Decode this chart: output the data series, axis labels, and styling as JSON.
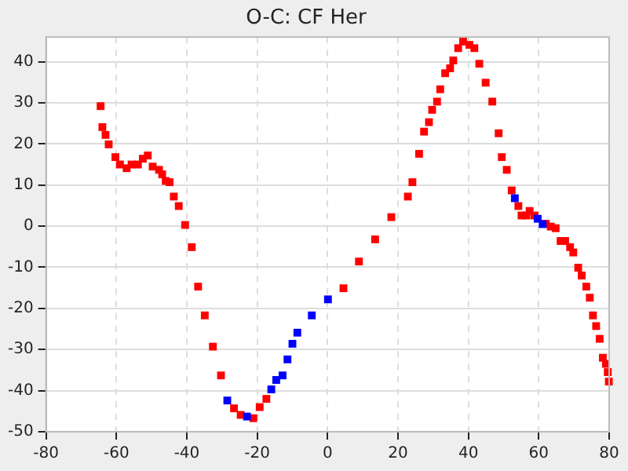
{
  "chart_data": {
    "type": "scatter",
    "title": "O-C: CF Her",
    "marker": "square",
    "grid": true,
    "legend": false,
    "xlim": [
      -80,
      80
    ],
    "xticks": [
      -80,
      -60,
      -40,
      -20,
      0,
      20,
      40,
      60,
      80
    ],
    "ylim": [
      -50,
      46
    ],
    "yticks": [
      -50,
      -40,
      -30,
      -20,
      -10,
      0,
      10,
      20,
      30,
      40
    ],
    "series": [
      {
        "color": "#ff0000",
        "x": [
          -64.5,
          -64.0,
          -63.1,
          -62.2,
          -60.3,
          -59.0,
          -57.1,
          -55.7,
          -53.9,
          -52.5,
          -51.1,
          -49.7,
          -47.9,
          -47.0,
          -46.0,
          -44.9,
          -43.7,
          -42.3,
          -40.5,
          -38.6,
          -36.8,
          -34.9,
          -32.6,
          -30.3,
          -26.6,
          -24.7,
          -21.1,
          -19.3,
          -17.4,
          4.5,
          8.9,
          13.5,
          18.1,
          22.8,
          24.1,
          26.0,
          27.4,
          28.8,
          29.7,
          31.1,
          32.0,
          33.4,
          34.8,
          35.7,
          37.1,
          38.5,
          40.3,
          41.7,
          43.1,
          44.9,
          46.8,
          48.6,
          49.5,
          50.9,
          52.3,
          54.2,
          55.1,
          56.5,
          57.4,
          58.8,
          62.0,
          63.4,
          64.8,
          66.2,
          67.5,
          68.9,
          69.8,
          71.2,
          72.2,
          73.5,
          74.5,
          75.4,
          76.3,
          77.3,
          78.2,
          79.1,
          79.6,
          79.9
        ],
        "values": [
          29.2,
          24.1,
          22.2,
          19.9,
          16.8,
          15.0,
          14.1,
          15.0,
          15.0,
          16.4,
          17.2,
          14.5,
          13.7,
          12.6,
          11.0,
          10.7,
          7.2,
          4.9,
          0.3,
          -5.1,
          -14.7,
          -21.7,
          -29.3,
          -36.3,
          -44.3,
          -45.9,
          -46.7,
          -44.0,
          -42.0,
          -15.1,
          -8.6,
          -3.2,
          2.2,
          7.2,
          10.7,
          17.6,
          23.0,
          25.3,
          28.3,
          30.3,
          33.3,
          37.2,
          38.4,
          40.3,
          43.3,
          44.9,
          44.1,
          43.3,
          39.5,
          34.9,
          30.3,
          22.6,
          16.8,
          13.7,
          8.7,
          4.9,
          2.6,
          2.6,
          3.7,
          2.6,
          0.6,
          -0.1,
          -0.5,
          -3.6,
          -3.6,
          -5.1,
          -6.4,
          -10.1,
          -12.0,
          -14.7,
          -17.4,
          -21.7,
          -24.3,
          -27.4,
          -32.0,
          -33.5,
          -35.5,
          -37.8
        ]
      },
      {
        "color": "#0000ff",
        "x": [
          -28.5,
          -22.9,
          -16.0,
          -14.6,
          -12.8,
          -11.4,
          -10.0,
          -8.6,
          -4.5,
          0.1,
          53.2,
          59.7,
          61.1
        ],
        "values": [
          -42.4,
          -46.3,
          -39.7,
          -37.4,
          -36.3,
          -32.4,
          -28.6,
          -25.9,
          -21.7,
          -17.8,
          6.8,
          1.8,
          0.5
        ]
      }
    ]
  }
}
